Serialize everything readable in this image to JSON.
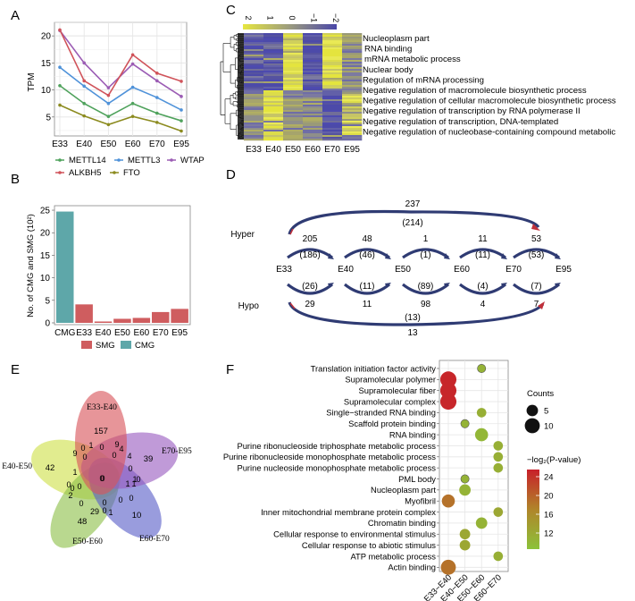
{
  "panels": {
    "A": "A",
    "B": "B",
    "C": "C",
    "D": "D",
    "E": "E",
    "F": "F"
  },
  "chart_data": [
    {
      "panel": "A",
      "type": "line",
      "title": "",
      "xlabel": "",
      "ylabel": "TPM",
      "x": [
        "E33",
        "E40",
        "E50",
        "E60",
        "E70",
        "E95"
      ],
      "ylim": [
        1.5,
        22.5
      ],
      "yticks": [
        5,
        10,
        15,
        20
      ],
      "grid": true,
      "legend_position": "bottom",
      "series": [
        {
          "name": "METTL14",
          "color": "#4fa25c",
          "values": [
            10.8,
            7.5,
            5.1,
            7.5,
            5.7,
            4.3
          ]
        },
        {
          "name": "METTL3",
          "color": "#4f92d9",
          "values": [
            14.2,
            10.7,
            7.5,
            10.5,
            8.6,
            6.3
          ]
        },
        {
          "name": "WTAP",
          "color": "#9b5cb4",
          "values": [
            21.0,
            15.0,
            10.4,
            14.8,
            11.7,
            8.8
          ]
        },
        {
          "name": "ALKBH5",
          "color": "#d0535a",
          "values": [
            21.1,
            11.7,
            9.0,
            16.5,
            13.1,
            11.6
          ]
        },
        {
          "name": "FTO",
          "color": "#8c8b1f",
          "values": [
            7.2,
            5.2,
            3.6,
            5.1,
            4.0,
            2.4
          ]
        }
      ]
    },
    {
      "panel": "B",
      "type": "bar",
      "title": "",
      "xlabel": "",
      "ylabel": "No. of CMG and  SMG (10²)",
      "categories": [
        "CMG",
        "E33",
        "E40",
        "E50",
        "E60",
        "E70",
        "E95"
      ],
      "values": [
        24.7,
        4.1,
        0.3,
        0.9,
        1.1,
        2.4,
        3.1
      ],
      "groups": [
        "CMG",
        "SMG",
        "SMG",
        "SMG",
        "SMG",
        "SMG",
        "SMG"
      ],
      "ylim": [
        0,
        26
      ],
      "yticks": [
        0,
        5,
        10,
        15,
        20,
        25
      ],
      "legend_position": "bottom",
      "legend": [
        {
          "name": "SMG",
          "color": "#cf5d5f"
        },
        {
          "name": "CMG",
          "color": "#5ea7a9"
        }
      ]
    },
    {
      "panel": "C",
      "type": "heatmap",
      "columns": [
        "E33",
        "E40",
        "E50",
        "E60",
        "E70",
        "E95"
      ],
      "colorbar": {
        "ticks": [
          "2",
          "1",
          "0",
          "−1",
          "−2"
        ],
        "low_color": "#e6e640",
        "mid_color": "#9b9b7f",
        "high_color": "#4a47a8"
      },
      "row_clusters": [
        {
          "name": "cluster-1",
          "column_pattern": [
            "low",
            "low",
            "high",
            "low",
            "high",
            "mid"
          ]
        },
        {
          "name": "cluster-2",
          "column_pattern": [
            "mid",
            "high",
            "mid",
            "mid",
            "low",
            "mid-high"
          ]
        }
      ],
      "row_annotations": [
        "Nucleoplasm part",
        "RNA binding",
        "mRNA metabolic process",
        "Nuclear body",
        "Regulation of mRNA processing",
        "Negative regulation of macromolecule biosynthetic process",
        "Negative regulation of cellular macromolecule biosynthetic process",
        "Negative regulation of transcription by RNA polymerase II",
        "Negative regulation of transcription, DNA-templated",
        "Negative regulation of nucleobase-containing compound metabolic"
      ]
    },
    {
      "panel": "D",
      "type": "diagram",
      "nodes": [
        "E33",
        "E40",
        "E50",
        "E60",
        "E70",
        "E95"
      ],
      "hyper_label": "Hyper",
      "hypo_label": "Hypo",
      "hyper_adjacent": [
        {
          "from": "E33",
          "to": "E40",
          "count": "205",
          "sub": "(186)"
        },
        {
          "from": "E40",
          "to": "E50",
          "count": "48",
          "sub": "(46)"
        },
        {
          "from": "E50",
          "to": "E60",
          "count": "1",
          "sub": "(1)"
        },
        {
          "from": "E60",
          "to": "E70",
          "count": "11",
          "sub": "(11)"
        },
        {
          "from": "E70",
          "to": "E95",
          "count": "53",
          "sub": "(53)"
        }
      ],
      "hypo_adjacent": [
        {
          "from": "E33",
          "to": "E40",
          "count": "29",
          "sub": "(26)"
        },
        {
          "from": "E40",
          "to": "E50",
          "count": "11",
          "sub": "(11)"
        },
        {
          "from": "E50",
          "to": "E60",
          "count": "98",
          "sub": "(89)"
        },
        {
          "from": "E60",
          "to": "E70",
          "count": "4",
          "sub": "(4)"
        },
        {
          "from": "E70",
          "to": "E95",
          "count": "7",
          "sub": "(7)"
        }
      ],
      "hyper_long": {
        "from": "E33",
        "to": "E95",
        "count": "237",
        "sub": "(214)"
      },
      "hypo_long": {
        "from": "E33",
        "to": "E95",
        "count": "13",
        "sub": "(13)"
      },
      "arc_color": "#2f3b73",
      "arrow_color": "#c0303a"
    },
    {
      "panel": "E",
      "type": "venn",
      "sets": [
        {
          "name": "E33-E40",
          "color": "#d9545a",
          "unique": "157"
        },
        {
          "name": "E70-E95",
          "color": "#9a5cc0",
          "unique": "39"
        },
        {
          "name": "E60-E70",
          "color": "#5a5fc8",
          "unique": "10"
        },
        {
          "name": "E50-E60",
          "color": "#8ec04a",
          "unique": "48"
        },
        {
          "name": "E40-E50",
          "color": "#cfe04a",
          "unique": "42"
        }
      ],
      "intersections": [
        "9",
        "0",
        "1",
        "0",
        "9",
        "4",
        "0",
        "0",
        "4",
        "0",
        "1",
        "0",
        "0",
        "0",
        "0",
        "0",
        "1",
        "2",
        "0",
        "1",
        "1",
        "0",
        "0",
        "0",
        "29",
        "0",
        "1",
        "0"
      ]
    },
    {
      "panel": "F",
      "type": "scatter",
      "subtype": "dot-plot",
      "x": [
        "E33−E40",
        "E40−E50",
        "E50−E60",
        "E60−E70"
      ],
      "terms": [
        "Translation initiation factor activity",
        "Supramolecular polymer",
        "Supramolecular fiber",
        "Supramolecular complex",
        "Single−stranded RNA binding",
        "Scaffold protein binding",
        "RNA binding",
        "Purine ribonucleoside triphosphate metabolic process",
        "Purine ribonucleoside monophosphate metabolic process",
        "Purine nucleoside monophosphate metabolic process",
        "PML body",
        "Nucleoplasm part",
        "Myofibril",
        "Inner mitochondrial membrane protein complex",
        "Chromatin binding",
        "Cellular response to environmental stimulus",
        "Cellular response to abiotic stimulus",
        "ATP metabolic process",
        "Actin binding"
      ],
      "points": [
        {
          "term": 0,
          "x": 2,
          "count": 2,
          "neglog2p": 11
        },
        {
          "term": 1,
          "x": 0,
          "count": 12,
          "neglog2p": 24.5
        },
        {
          "term": 2,
          "x": 0,
          "count": 12,
          "neglog2p": 24.5
        },
        {
          "term": 3,
          "x": 0,
          "count": 12,
          "neglog2p": 24.5
        },
        {
          "term": 4,
          "x": 2,
          "count": 3,
          "neglog2p": 11.5
        },
        {
          "term": 5,
          "x": 1,
          "count": 2,
          "neglog2p": 11
        },
        {
          "term": 6,
          "x": 2,
          "count": 7,
          "neglog2p": 10.5
        },
        {
          "term": 7,
          "x": 3,
          "count": 3,
          "neglog2p": 11.5
        },
        {
          "term": 8,
          "x": 3,
          "count": 3,
          "neglog2p": 11.5
        },
        {
          "term": 9,
          "x": 3,
          "count": 3,
          "neglog2p": 11.5
        },
        {
          "term": 10,
          "x": 1,
          "count": 2,
          "neglog2p": 11
        },
        {
          "term": 11,
          "x": 1,
          "count": 5,
          "neglog2p": 11
        },
        {
          "term": 12,
          "x": 0,
          "count": 7,
          "neglog2p": 18.5
        },
        {
          "term": 13,
          "x": 3,
          "count": 3,
          "neglog2p": 12.5
        },
        {
          "term": 14,
          "x": 2,
          "count": 5,
          "neglog2p": 11
        },
        {
          "term": 15,
          "x": 1,
          "count": 4,
          "neglog2p": 12.5
        },
        {
          "term": 16,
          "x": 1,
          "count": 4,
          "neglog2p": 12.5
        },
        {
          "term": 17,
          "x": 3,
          "count": 3,
          "neglog2p": 11.5
        },
        {
          "term": 18,
          "x": 0,
          "count": 10,
          "neglog2p": 18.5
        }
      ],
      "size_legend": {
        "title": "Counts",
        "entries": [
          {
            "label": "5",
            "value": 5
          },
          {
            "label": "10",
            "value": 10
          }
        ]
      },
      "color_legend": {
        "title": "−log₂(P-value)",
        "ticks": [
          "24",
          "20",
          "16",
          "12"
        ],
        "range": [
          9,
          25
        ],
        "high_color": "#c8202a",
        "mid_color": "#b0852a",
        "low_color": "#8cc23a"
      },
      "grid": true
    }
  ]
}
